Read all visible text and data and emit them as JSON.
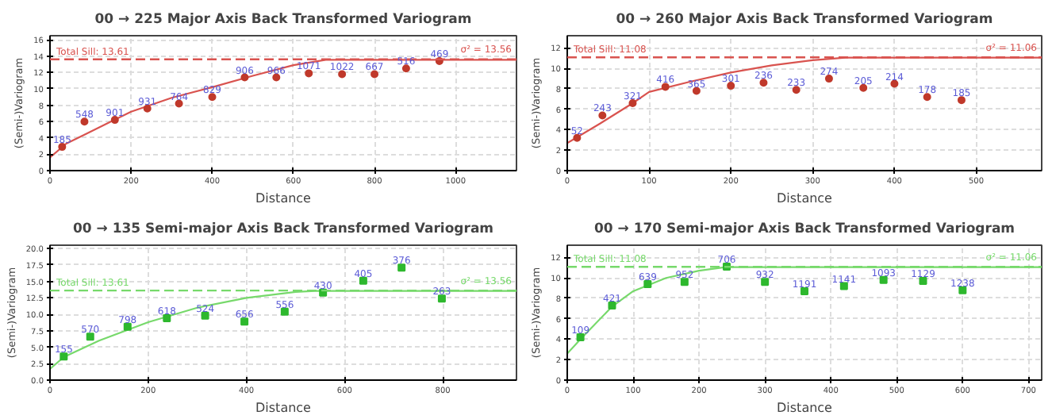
{
  "chart_data": [
    {
      "type": "scatter",
      "title": "00 → 225 Major Axis Back Transformed Variogram",
      "xlabel": "Distance",
      "ylabel": "(Semi-)Variogram",
      "xlim": [
        0,
        1150
      ],
      "ylim": [
        0,
        16.5
      ],
      "xticks": [
        0,
        200,
        400,
        600,
        800,
        1000
      ],
      "yticks": [
        0,
        2,
        4,
        6,
        8,
        10,
        12,
        14,
        16
      ],
      "grid": true,
      "series": [
        {
          "type": "line",
          "color": "#d9534f",
          "x": [
            0,
            40,
            85,
            150,
            200,
            300,
            400,
            500,
            600,
            680,
            1150
          ],
          "values": [
            1.6,
            3.3,
            4.4,
            6.0,
            7.2,
            8.9,
            10.2,
            11.6,
            12.9,
            13.56,
            13.56
          ]
        },
        {
          "color": "#c0392b",
          "marker": "circle",
          "x": [
            30,
            85,
            160,
            240,
            318,
            400,
            480,
            558,
            638,
            720,
            800,
            878,
            960
          ],
          "values": [
            2.9,
            6.0,
            6.2,
            7.6,
            8.2,
            9.0,
            11.4,
            11.4,
            11.9,
            11.8,
            11.8,
            12.5,
            13.4
          ]
        }
      ],
      "ref_lines": [
        {
          "axis": "y",
          "value": 13.61,
          "label": "Total Sill: 13.61",
          "color": "#d9534f",
          "line_style": "dashed"
        }
      ],
      "annotations": [
        {
          "text": "185",
          "x": 30,
          "y": 2.9
        },
        {
          "text": "548",
          "x": 85,
          "y": 6.0
        },
        {
          "text": "901",
          "x": 160,
          "y": 6.2
        },
        {
          "text": "931",
          "x": 240,
          "y": 7.6
        },
        {
          "text": "764",
          "x": 318,
          "y": 8.2
        },
        {
          "text": "829",
          "x": 400,
          "y": 9.0
        },
        {
          "text": "906",
          "x": 480,
          "y": 11.4
        },
        {
          "text": "966",
          "x": 558,
          "y": 11.4
        },
        {
          "text": "1071",
          "x": 638,
          "y": 11.9
        },
        {
          "text": "1022",
          "x": 720,
          "y": 11.8
        },
        {
          "text": "667",
          "x": 800,
          "y": 11.8
        },
        {
          "text": "516",
          "x": 878,
          "y": 12.5
        },
        {
          "text": "469",
          "x": 960,
          "y": 13.4
        },
        {
          "text": "σ² = 13.56",
          "x": 1150,
          "y": 13.56
        }
      ]
    },
    {
      "type": "scatter",
      "title": "00 → 260 Major Axis Back Transformed Variogram",
      "xlabel": "Distance",
      "ylabel": "(Semi-)Variogram",
      "xlim": [
        0,
        580
      ],
      "ylim": [
        0,
        13.2
      ],
      "xticks": [
        0,
        100,
        200,
        300,
        400,
        500
      ],
      "yticks": [
        0,
        2,
        4,
        6,
        8,
        10,
        12
      ],
      "grid": true,
      "series": [
        {
          "type": "line",
          "color": "#d9534f",
          "x": [
            0,
            40,
            80,
            100,
            150,
            200,
            250,
            300,
            340,
            580
          ],
          "values": [
            2.7,
            4.6,
            6.6,
            7.7,
            8.7,
            9.6,
            10.3,
            10.8,
            11.06,
            11.06
          ]
        },
        {
          "color": "#c0392b",
          "marker": "circle",
          "x": [
            12,
            43,
            80,
            120,
            158,
            200,
            240,
            280,
            320,
            362,
            400,
            440,
            482
          ],
          "values": [
            3.2,
            5.4,
            6.6,
            8.2,
            7.8,
            8.3,
            8.6,
            7.9,
            9.0,
            8.1,
            8.5,
            7.2,
            6.9
          ]
        }
      ],
      "ref_lines": [
        {
          "axis": "y",
          "value": 11.08,
          "label": "Total Sill: 11.08",
          "color": "#d9534f",
          "line_style": "dashed"
        }
      ],
      "annotations": [
        {
          "text": "52",
          "x": 12,
          "y": 3.2
        },
        {
          "text": "243",
          "x": 43,
          "y": 5.4
        },
        {
          "text": "321",
          "x": 80,
          "y": 6.6
        },
        {
          "text": "416",
          "x": 120,
          "y": 8.2
        },
        {
          "text": "365",
          "x": 158,
          "y": 7.8
        },
        {
          "text": "301",
          "x": 200,
          "y": 8.3
        },
        {
          "text": "236",
          "x": 240,
          "y": 8.6
        },
        {
          "text": "233",
          "x": 280,
          "y": 7.9
        },
        {
          "text": "274",
          "x": 320,
          "y": 9.0
        },
        {
          "text": "205",
          "x": 362,
          "y": 8.1
        },
        {
          "text": "214",
          "x": 400,
          "y": 8.5
        },
        {
          "text": "178",
          "x": 440,
          "y": 7.2
        },
        {
          "text": "185",
          "x": 482,
          "y": 6.9
        },
        {
          "text": "σ² = 11.06",
          "x": 580,
          "y": 11.06
        }
      ]
    },
    {
      "type": "scatter",
      "title": "00 → 135 Semi-major Axis Back Transformed Variogram",
      "xlabel": "Distance",
      "ylabel": "(Semi-)Variogram",
      "xlim": [
        0,
        950
      ],
      "ylim": [
        0,
        20.5
      ],
      "xticks": [
        0,
        200,
        400,
        600,
        800
      ],
      "yticks": [
        {
          "value": 0,
          "label": "0.0"
        },
        {
          "value": 2.5,
          "label": "2.5"
        },
        {
          "value": 5,
          "label": "5.0"
        },
        {
          "value": 7.5,
          "label": "7.5"
        },
        {
          "value": 10,
          "label": "10.0"
        },
        {
          "value": 12.5,
          "label": "12.5"
        },
        {
          "value": 15,
          "label": "15.0"
        },
        {
          "value": 17.5,
          "label": "17.5"
        },
        {
          "value": 20,
          "label": "20.0"
        }
      ],
      "grid": true,
      "series": [
        {
          "type": "line",
          "color": "#77d96b",
          "x": [
            0,
            28,
            100,
            200,
            300,
            400,
            500,
            540,
            950
          ],
          "values": [
            1.7,
            3.5,
            6.0,
            8.8,
            11.0,
            12.5,
            13.4,
            13.56,
            13.56
          ]
        },
        {
          "color": "#2eb82e",
          "marker": "square",
          "x": [
            28,
            82,
            158,
            238,
            316,
            396,
            478,
            556,
            638,
            716,
            798
          ],
          "values": [
            3.6,
            6.6,
            8.1,
            9.4,
            9.8,
            8.9,
            10.4,
            13.3,
            15.1,
            17.1,
            12.4
          ]
        }
      ],
      "ref_lines": [
        {
          "axis": "y",
          "value": 13.61,
          "label": "Total Sill: 13.61",
          "color": "#77d96b",
          "line_style": "dashed"
        }
      ],
      "annotations": [
        {
          "text": "155",
          "x": 28,
          "y": 3.6
        },
        {
          "text": "570",
          "x": 82,
          "y": 6.6
        },
        {
          "text": "798",
          "x": 158,
          "y": 8.1
        },
        {
          "text": "618",
          "x": 238,
          "y": 9.4
        },
        {
          "text": "524",
          "x": 316,
          "y": 9.8
        },
        {
          "text": "656",
          "x": 396,
          "y": 8.9
        },
        {
          "text": "556",
          "x": 478,
          "y": 10.4
        },
        {
          "text": "430",
          "x": 556,
          "y": 13.3
        },
        {
          "text": "405",
          "x": 638,
          "y": 15.1
        },
        {
          "text": "376",
          "x": 716,
          "y": 17.1
        },
        {
          "text": "263",
          "x": 798,
          "y": 12.4
        },
        {
          "text": "σ² = 13.56",
          "x": 950,
          "y": 13.56
        }
      ]
    },
    {
      "type": "scatter",
      "title": "00 → 170 Semi-major Axis Back Transformed Variogram",
      "xlabel": "Distance",
      "ylabel": "(Semi-)Variogram",
      "xlim": [
        0,
        720
      ],
      "ylim": [
        0,
        13.2
      ],
      "xticks": [
        0,
        100,
        200,
        300,
        400,
        500,
        600,
        700
      ],
      "yticks": [
        0,
        2,
        4,
        6,
        8,
        10,
        12
      ],
      "grid": true,
      "series": [
        {
          "type": "line",
          "color": "#77d96b",
          "x": [
            0,
            20,
            68,
            100,
            150,
            200,
            240,
            720
          ],
          "values": [
            2.6,
            4.0,
            7.2,
            8.7,
            10.0,
            10.7,
            11.06,
            11.06
          ]
        },
        {
          "color": "#2eb82e",
          "marker": "square",
          "x": [
            20,
            68,
            122,
            178,
            242,
            300,
            360,
            420,
            480,
            540,
            600
          ],
          "values": [
            4.2,
            7.3,
            9.4,
            9.6,
            11.1,
            9.6,
            8.7,
            9.2,
            9.8,
            9.7,
            8.8
          ]
        }
      ],
      "ref_lines": [
        {
          "axis": "y",
          "value": 11.08,
          "label": "Total Sill: 11.08",
          "color": "#77d96b",
          "line_style": "dashed"
        }
      ],
      "annotations": [
        {
          "text": "109",
          "x": 20,
          "y": 4.2
        },
        {
          "text": "421",
          "x": 68,
          "y": 7.3
        },
        {
          "text": "639",
          "x": 122,
          "y": 9.4
        },
        {
          "text": "952",
          "x": 178,
          "y": 9.6
        },
        {
          "text": "706",
          "x": 242,
          "y": 11.1
        },
        {
          "text": "932",
          "x": 300,
          "y": 9.6
        },
        {
          "text": "1191",
          "x": 360,
          "y": 8.7
        },
        {
          "text": "1141",
          "x": 420,
          "y": 9.2
        },
        {
          "text": "1093",
          "x": 480,
          "y": 9.8
        },
        {
          "text": "1129",
          "x": 540,
          "y": 9.7
        },
        {
          "text": "1238",
          "x": 600,
          "y": 8.8
        },
        {
          "text": "σ² = 11.06",
          "x": 720,
          "y": 11.06
        }
      ]
    }
  ]
}
